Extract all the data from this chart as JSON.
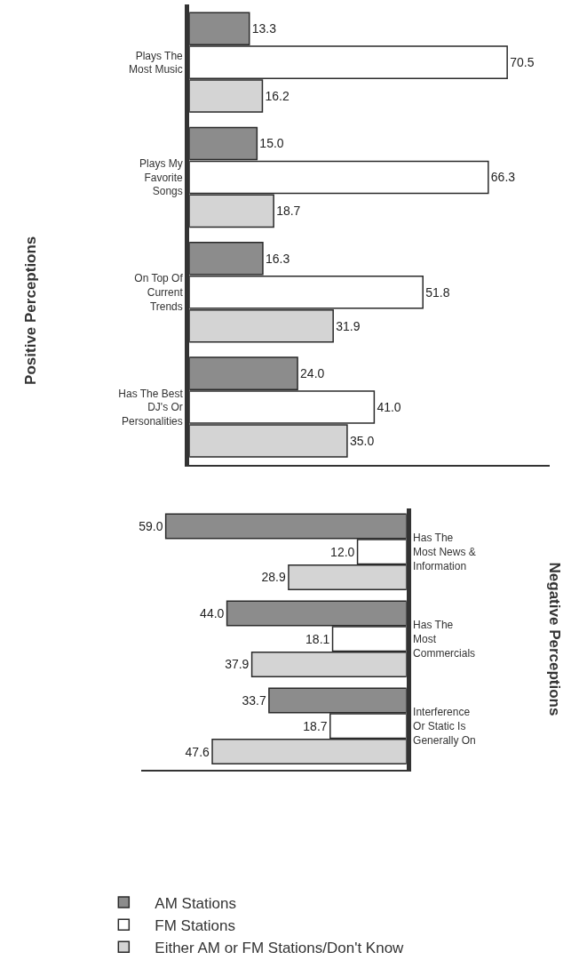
{
  "chart_data": [
    {
      "type": "bar",
      "orientation": "horizontal",
      "ylabel": "Positive Perceptions",
      "categories": [
        "Plays The\nMost Music",
        "Plays My\nFavorite\nSongs",
        "On Top Of\nCurrent\nTrends",
        "Has The Best\nDJ's Or\nPersonalities"
      ],
      "xlim": [
        0,
        80
      ],
      "tick_labels": "y",
      "series": [
        {
          "color": "#8c8c8c",
          "values": [
            13.3,
            15.0,
            16.3,
            24.0
          ],
          "value_labels": [
            "13.3",
            "15.0",
            "16.3",
            "24.0"
          ]
        },
        {
          "color": "#ffffff",
          "values": [
            70.5,
            66.3,
            51.8,
            41.0
          ],
          "value_labels": [
            "70.5",
            "66.3",
            "51.8",
            "41.0"
          ]
        },
        {
          "color": "#d4d4d4",
          "values": [
            16.2,
            18.7,
            31.9,
            35.0
          ],
          "value_labels": [
            "16.2",
            "18.7",
            "31.9",
            "35.0"
          ]
        }
      ]
    },
    {
      "type": "bar",
      "orientation": "horizontal",
      "ylabel": "Negative Perceptions",
      "categories": [
        "Has The\nMost News &\nInformation",
        "Has The\nMost\nCommercials",
        "Interference\nOr Static Is\nGenerally On"
      ],
      "xlim": [
        65,
        0
      ],
      "tick_labels": "y",
      "legend": "bottom",
      "series": [
        {
          "name": "AM Stations",
          "color": "#8c8c8c",
          "values": [
            59.0,
            44.0,
            33.7
          ],
          "value_labels": [
            "59.0",
            "44.0",
            "33.7"
          ]
        },
        {
          "name": "FM Stations",
          "color": "#ffffff",
          "values": [
            12.0,
            18.1,
            18.7
          ],
          "value_labels": [
            "12.0",
            "18.1",
            "18.7"
          ]
        },
        {
          "name": "Either AM or FM Stations/Don't Know",
          "color": "#d4d4d4",
          "values": [
            28.9,
            37.9,
            47.6
          ],
          "value_labels": [
            "28.9",
            "37.9",
            "47.6"
          ]
        }
      ]
    }
  ]
}
